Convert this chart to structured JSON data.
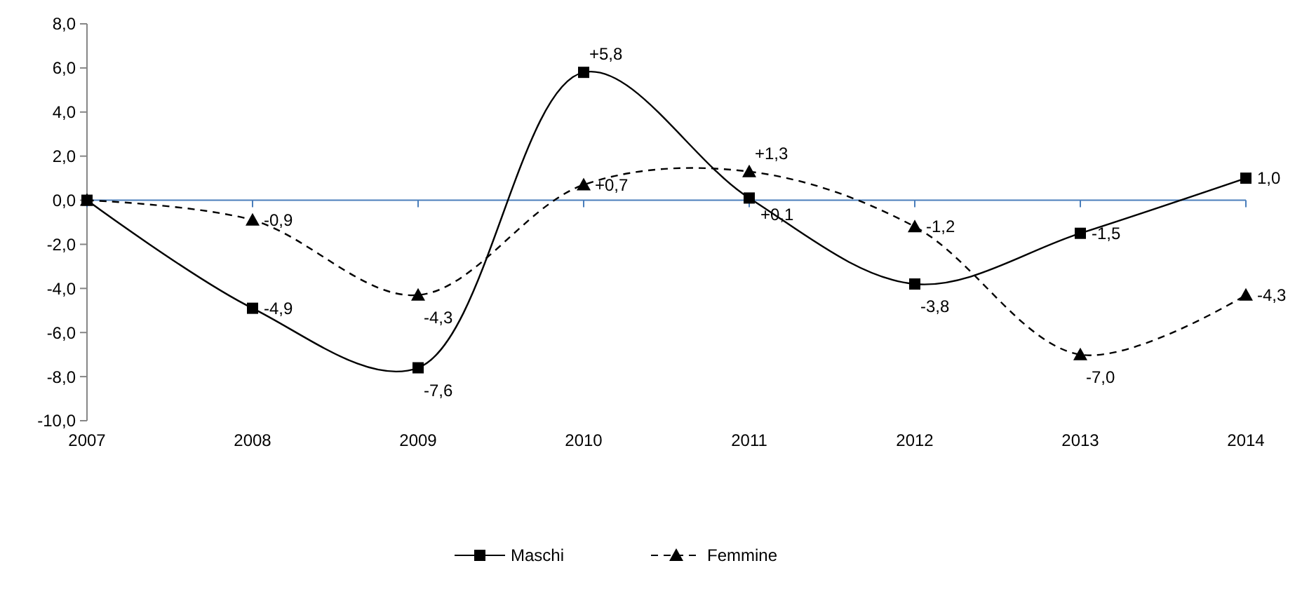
{
  "chart_data": {
    "type": "line",
    "categories": [
      "2007",
      "2008",
      "2009",
      "2010",
      "2011",
      "2012",
      "2013",
      "2014"
    ],
    "ylim": [
      -10,
      8
    ],
    "yticks": [
      {
        "value": -10,
        "label": "-10,0"
      },
      {
        "value": -8,
        "label": "-8,0"
      },
      {
        "value": -6,
        "label": "-6,0"
      },
      {
        "value": -4,
        "label": "-4,0"
      },
      {
        "value": -2,
        "label": "-2,0"
      },
      {
        "value": 0,
        "label": "0,0"
      },
      {
        "value": 2,
        "label": "2,0"
      },
      {
        "value": 4,
        "label": "4,0"
      },
      {
        "value": 6,
        "label": "6,0"
      },
      {
        "value": 8,
        "label": "8,0"
      }
    ],
    "grid": false,
    "legend": "bottom",
    "ref_lines": [
      {
        "axis": "y",
        "value": 0,
        "color": "#4a7ebb"
      }
    ],
    "series": [
      {
        "name": "Maschi",
        "color": "#000000",
        "marker": "square",
        "line_style": "solid",
        "values": [
          0,
          -4.9,
          -7.6,
          5.8,
          0.1,
          -3.8,
          -1.5,
          1.0
        ],
        "value_labels": [
          null,
          "-4,9",
          "-7,6",
          "+5,8",
          "+0,1",
          "-3,8",
          "-1,5",
          "1,0"
        ]
      },
      {
        "name": "Femmine",
        "color": "#000000",
        "marker": "triangle",
        "line_style": "dashed",
        "values": [
          0,
          -0.9,
          -4.3,
          0.7,
          1.3,
          -1.2,
          -7.0,
          -4.3
        ],
        "value_labels": [
          null,
          "-0,9",
          "-4,3",
          "+0,7",
          "+1,3",
          "-1,2",
          "-7,0",
          "-4,3"
        ]
      }
    ]
  }
}
